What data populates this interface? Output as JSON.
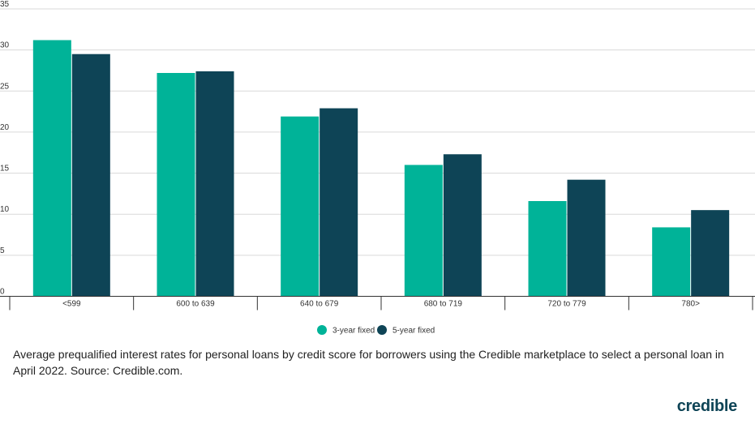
{
  "chart_data": {
    "type": "bar",
    "categories": [
      "<599",
      "600 to 639",
      "640 to 679",
      "680 to 719",
      "720 to 779",
      "780>"
    ],
    "series": [
      {
        "name": "3-year fixed",
        "color": "#00b398",
        "values": [
          31.2,
          27.2,
          21.9,
          16.0,
          11.6,
          8.4
        ]
      },
      {
        "name": "5-year fixed",
        "color": "#0e4456",
        "values": [
          29.5,
          27.4,
          22.9,
          17.3,
          14.2,
          10.5
        ]
      }
    ],
    "y_ticks": [
      0,
      5,
      10,
      15,
      20,
      25,
      30,
      35
    ],
    "ylim": [
      0,
      35
    ],
    "grid": true,
    "legend_position": "bottom-center"
  },
  "caption": "Average prequalified interest rates for personal loans by credit score for borrowers using the Credible marketplace to select a personal loan in April 2022. Source: Credible.com.",
  "brand": "credible",
  "colors": {
    "teal": "#00b398",
    "navy": "#0e4456"
  }
}
